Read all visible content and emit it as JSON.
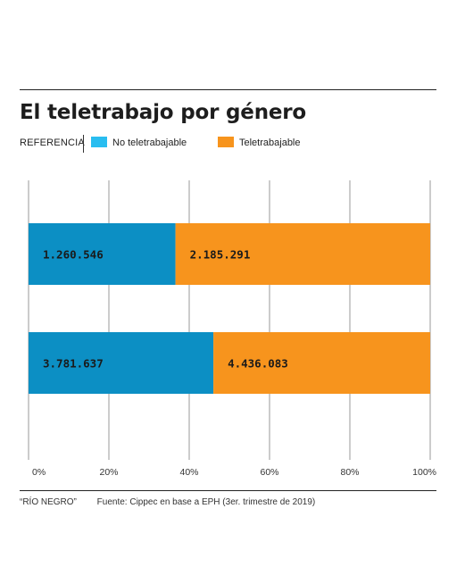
{
  "chart_data": {
    "type": "bar",
    "orientation": "horizontal",
    "stacked": "percent",
    "title": "El teletrabajo por género",
    "legend_heading": "REFERENCIA",
    "legend_position": "top-left",
    "series": [
      {
        "name": "No teletrabajable",
        "color": "#0c8fc4",
        "legend_color": "#29bdf0",
        "values": [
          1260546,
          3781637
        ],
        "labels": [
          "1.260.546",
          "3.781.637"
        ]
      },
      {
        "name": "Teletrabajable",
        "color": "#f7941d",
        "legend_color": "#f7941d",
        "values": [
          2185291,
          4436083
        ],
        "labels": [
          "2.185.291",
          "4.436.083"
        ]
      }
    ],
    "xlim": [
      0,
      100
    ],
    "x_ticks": [
      0,
      20,
      40,
      60,
      80,
      100
    ],
    "x_tick_labels": [
      "0%",
      "20%",
      "40%",
      "60%",
      "80%",
      "100%"
    ],
    "grid": true
  },
  "footer": {
    "outlet": "“RÍO NEGRO”",
    "source": "Fuente: Cippec en base a EPH (3er. trimestre de 2019)"
  }
}
